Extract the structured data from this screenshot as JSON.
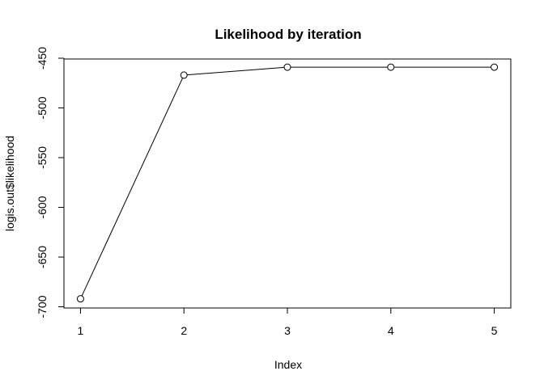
{
  "chart_data": {
    "type": "line",
    "title": "Likelihood by iteration",
    "xlabel": "Index",
    "ylabel": "logis.out$likelihood",
    "x": [
      1,
      2,
      3,
      4,
      5
    ],
    "values": [
      -692,
      -467,
      -459,
      -459,
      -459
    ],
    "xlim": [
      0.84,
      5.16
    ],
    "ylim": [
      -701.2,
      -450.8
    ],
    "xticks": [
      1,
      2,
      3,
      4,
      5
    ],
    "yticks": [
      -700,
      -650,
      -600,
      -550,
      -500,
      -450
    ],
    "marker": "open-circle",
    "grid": false,
    "colors": {
      "line": "#000000",
      "marker": "#000000"
    }
  }
}
